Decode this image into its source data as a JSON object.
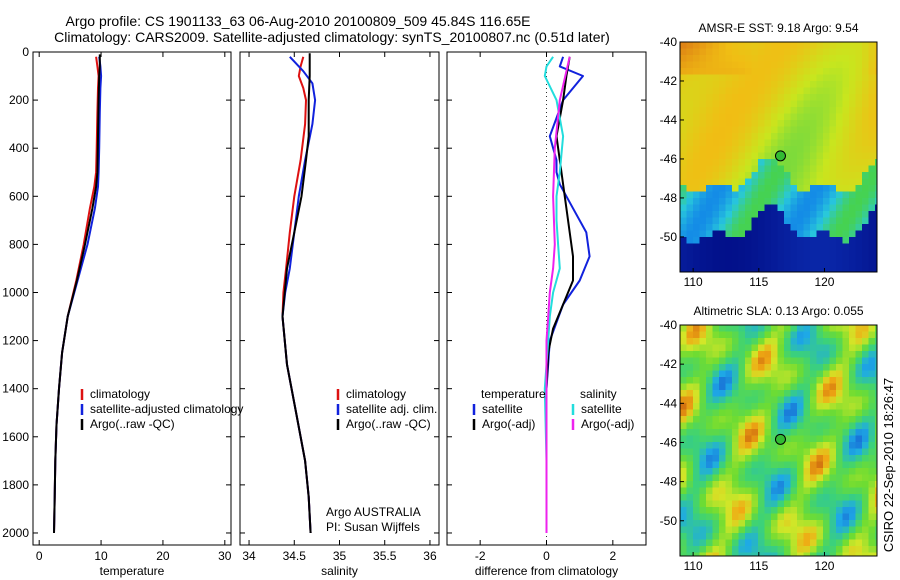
{
  "header": {
    "title_line1": "Argo profile: CS 1901133_63 06-Aug-2010 20100809_509 45.84S 116.65E",
    "title_line2": "Climatology: CARS2009. Satellite-adjusted climatology: synTS_20100807.nc (0.51d later)"
  },
  "colors": {
    "climatology": "#dd1111",
    "satellite": "#1122dd",
    "argo": "#000000",
    "satellite_salinity": "#22dddd",
    "argo_salinity": "#ee22ee",
    "marker": "#33bb33"
  },
  "footer": {
    "argo_label": "Argo AUSTRALIA",
    "pi_label": "PI: Susan Wijffels",
    "stamp": "CSIRO 22-Sep-2010 18:26:47"
  },
  "chart_data": [
    {
      "type": "line",
      "xlabel": "temperature",
      "ylabel": "",
      "xlim": [
        -1,
        31
      ],
      "ylim": [
        2050,
        0
      ],
      "xticks": [
        0,
        10,
        20,
        30
      ],
      "yticks": [
        0,
        200,
        400,
        600,
        800,
        1000,
        1200,
        1400,
        1600,
        1800,
        2000
      ],
      "grid": false,
      "legend": {
        "entries": [
          "climatology",
          "satellite-adjusted climatology",
          "Argo(..raw -QC)"
        ],
        "placement": "lower-right"
      },
      "series": [
        {
          "name": "climatology",
          "color": "#dd1111",
          "x": [
            9.2,
            9.4,
            9.6,
            9.5,
            9.4,
            9.3,
            9.2,
            8.9,
            8.2,
            7.2,
            6.0,
            4.6,
            3.7,
            3.2,
            2.8,
            2.6,
            2.5,
            2.4
          ],
          "y": [
            20,
            60,
            100,
            150,
            250,
            400,
            500,
            560,
            650,
            800,
            950,
            1100,
            1250,
            1400,
            1550,
            1700,
            1850,
            2000
          ]
        },
        {
          "name": "satellite-adjusted climatology",
          "color": "#1122dd",
          "x": [
            9.7,
            9.9,
            10.0,
            9.9,
            9.8,
            9.7,
            9.6,
            9.5,
            9.0,
            7.8,
            6.2,
            4.6,
            3.7,
            3.2,
            2.8,
            2.6,
            2.5,
            2.4
          ],
          "y": [
            20,
            60,
            100,
            150,
            250,
            400,
            500,
            560,
            650,
            800,
            950,
            1100,
            1250,
            1400,
            1550,
            1700,
            1850,
            2000
          ]
        },
        {
          "name": "Argo(..raw -QC)",
          "color": "#000000",
          "x": [
            9.8,
            9.8,
            9.7,
            9.6,
            9.5,
            9.4,
            9.2,
            8.6,
            7.4,
            6.1,
            4.6,
            3.7,
            3.2,
            2.8,
            2.6,
            2.5,
            2.4
          ],
          "y": [
            10,
            60,
            100,
            200,
            350,
            500,
            560,
            650,
            800,
            950,
            1100,
            1250,
            1400,
            1550,
            1700,
            1850,
            2000
          ]
        }
      ]
    },
    {
      "type": "line",
      "xlabel": "salinity",
      "ylabel": "",
      "xlim": [
        33.9,
        36.1
      ],
      "ylim": [
        2050,
        0
      ],
      "xticks": [
        34,
        34.5,
        35,
        35.5,
        36
      ],
      "xticklabels": [
        "34",
        "34.5",
        "35",
        "35.5",
        "36"
      ],
      "grid": false,
      "legend": {
        "entries": [
          "climatology",
          "satellite adj. clim.",
          "Argo(..raw -QC)"
        ],
        "placement": "lower-right"
      },
      "series": [
        {
          "name": "climatology",
          "color": "#dd1111",
          "x": [
            34.6,
            34.57,
            34.55,
            34.6,
            34.63,
            34.62,
            34.57,
            34.5,
            34.45,
            34.41,
            34.38,
            34.37,
            34.42,
            34.52,
            34.62,
            34.66,
            34.68
          ],
          "y": [
            20,
            60,
            100,
            150,
            200,
            300,
            450,
            600,
            750,
            900,
            1000,
            1100,
            1300,
            1500,
            1700,
            1850,
            2000
          ]
        },
        {
          "name": "satellite adj. clim.",
          "color": "#1122dd",
          "x": [
            34.45,
            34.5,
            34.6,
            34.7,
            34.73,
            34.7,
            34.62,
            34.55,
            34.5,
            34.45,
            34.4,
            34.37,
            34.42,
            34.52,
            34.62,
            34.66,
            34.68
          ],
          "y": [
            20,
            40,
            80,
            130,
            200,
            300,
            450,
            600,
            750,
            900,
            1000,
            1100,
            1300,
            1500,
            1700,
            1850,
            2000
          ]
        },
        {
          "name": "Argo(..raw -QC)",
          "color": "#000000",
          "x": [
            34.67,
            34.67,
            34.66,
            34.66,
            34.63,
            34.58,
            34.5,
            34.42,
            34.37,
            34.42,
            34.52,
            34.62,
            34.66,
            34.68
          ],
          "y": [
            5,
            100,
            200,
            350,
            450,
            600,
            750,
            900,
            1100,
            1300,
            1500,
            1700,
            1850,
            2000
          ]
        }
      ]
    },
    {
      "type": "line",
      "xlabel": "difference from climatology",
      "ylabel": "",
      "xlim": [
        -3,
        3
      ],
      "ylim": [
        2050,
        0
      ],
      "xticks": [
        -2,
        0,
        2
      ],
      "grid": false,
      "legend": {
        "groups": [
          {
            "heading": "temperature",
            "entries": [
              "satellite",
              "Argo(-adj)"
            ]
          },
          {
            "heading": "salinity",
            "entries": [
              "satellite",
              "Argo(-adj)"
            ]
          }
        ],
        "placement": "lower-right"
      },
      "series": [
        {
          "name": "satellite",
          "group": "temperature",
          "color": "#1122dd",
          "x": [
            0.5,
            0.4,
            1.1,
            0.5,
            0.1,
            0.3,
            0.3,
            0.4,
            0.8,
            1.2,
            1.3,
            1.0,
            0.5,
            0.1,
            0.0,
            0.0,
            0.0
          ],
          "y": [
            20,
            60,
            100,
            200,
            350,
            450,
            500,
            550,
            650,
            750,
            850,
            950,
            1050,
            1200,
            1400,
            1700,
            2000
          ]
        },
        {
          "name": "Argo(-adj)",
          "group": "temperature",
          "color": "#000000",
          "x": [
            0.7,
            0.6,
            0.5,
            0.3,
            0.4,
            0.5,
            0.6,
            0.7,
            0.8,
            0.8,
            0.5,
            0.2,
            0.05,
            0.0,
            0.0,
            0.0
          ],
          "y": [
            20,
            100,
            200,
            350,
            450,
            550,
            650,
            750,
            850,
            950,
            1050,
            1150,
            1250,
            1400,
            1700,
            2000
          ]
        },
        {
          "name": "satellite",
          "group": "salinity",
          "color": "#22dddd",
          "x": [
            0.2,
            0.0,
            -0.05,
            0.3,
            0.5,
            0.4,
            0.3,
            0.3,
            0.35,
            0.4,
            0.2,
            0.1,
            0.05,
            -0.05,
            0.0,
            0.0
          ],
          "y": [
            20,
            60,
            100,
            200,
            350,
            500,
            600,
            700,
            800,
            900,
            1000,
            1100,
            1200,
            1400,
            1700,
            2000
          ]
        },
        {
          "name": "Argo(-adj)",
          "group": "salinity",
          "color": "#ee22ee",
          "x": [
            0.7,
            0.6,
            0.4,
            0.25,
            0.2,
            0.25,
            0.2,
            0.1,
            0.05,
            0.0,
            0.0,
            0.0
          ],
          "y": [
            20,
            80,
            200,
            400,
            600,
            800,
            900,
            1000,
            1100,
            1200,
            1600,
            2000
          ]
        }
      ]
    },
    {
      "type": "heatmap",
      "title": "AMSR-E SST: 9.18 Argo: 9.54",
      "xlim": [
        109,
        124
      ],
      "ylim": [
        -51.8,
        -40
      ],
      "xticks": [
        110,
        115,
        120
      ],
      "yticks": [
        -40,
        -42,
        -44,
        -46,
        -48,
        -50
      ],
      "marker": {
        "lon": 116.65,
        "lat": -45.84
      }
    },
    {
      "type": "heatmap",
      "title": "Altimetric SLA: 0.13 Argo: 0.055",
      "xlim": [
        109,
        124
      ],
      "ylim": [
        -51.8,
        -40
      ],
      "xticks": [
        110,
        115,
        120
      ],
      "yticks": [
        -40,
        -42,
        -44,
        -46,
        -48,
        -50
      ],
      "marker": {
        "lon": 116.65,
        "lat": -45.84
      }
    }
  ]
}
